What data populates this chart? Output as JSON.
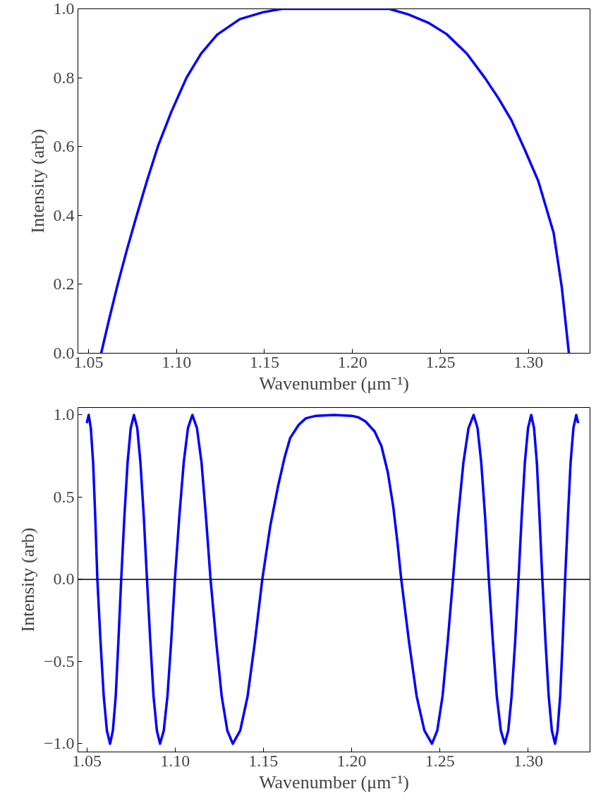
{
  "chart_data": [
    {
      "type": "line",
      "xlabel": "Wavenumber (μm⁻¹)",
      "ylabel": "Intensity (arb)",
      "grid": false,
      "marker": "none",
      "line_style": "solid",
      "xlim": [
        1.044,
        1.335
      ],
      "ylim": [
        0,
        1
      ],
      "xticks": [
        {
          "value": 1.05,
          "label": "1.05"
        },
        {
          "value": 1.1,
          "label": "1.10"
        },
        {
          "value": 1.15,
          "label": "1.15"
        },
        {
          "value": 1.2,
          "label": "1.20"
        },
        {
          "value": 1.25,
          "label": "1.25"
        },
        {
          "value": 1.3,
          "label": "1.30"
        }
      ],
      "yticks": [
        {
          "value": 0,
          "label": "0.0"
        },
        {
          "value": 0.2,
          "label": "0.2"
        },
        {
          "value": 0.4,
          "label": "0.4"
        },
        {
          "value": 0.6,
          "label": "0.6"
        },
        {
          "value": 0.8,
          "label": "0.8"
        },
        {
          "value": 1,
          "label": "1.0"
        }
      ],
      "series": [
        {
          "color": "#0000ff",
          "x": [
            1.0572,
            1.0618,
            1.0666,
            1.0718,
            1.0774,
            1.0832,
            1.0894,
            1.097,
            1.1057,
            1.114,
            1.1231,
            1.136,
            1.1491,
            1.16,
            1.18,
            1.2,
            1.2208,
            1.2317,
            1.243,
            1.2534,
            1.265,
            1.2752,
            1.283,
            1.2904,
            1.298,
            1.3056,
            1.3143,
            1.319,
            1.323
          ],
          "values": [
            0,
            0.1,
            0.2,
            0.3,
            0.4,
            0.5,
            0.6,
            0.7,
            0.8,
            0.87,
            0.925,
            0.97,
            0.99,
            1,
            1,
            1,
            1,
            0.984,
            0.96,
            0.927,
            0.87,
            0.8,
            0.74,
            0.676,
            0.59,
            0.5,
            0.35,
            0.19,
            0
          ]
        }
      ]
    },
    {
      "type": "line",
      "xlabel": "Wavenumber (μm⁻¹)",
      "ylabel": "Intensity (arb)",
      "grid": false,
      "marker": "none",
      "line_style": "solid",
      "xlim": [
        1.045,
        1.335
      ],
      "ylim": [
        -1.05,
        1.045
      ],
      "xticks": [
        {
          "value": 1.05,
          "label": "1.05"
        },
        {
          "value": 1.1,
          "label": "1.10"
        },
        {
          "value": 1.15,
          "label": "1.15"
        },
        {
          "value": 1.2,
          "label": "1.20"
        },
        {
          "value": 1.25,
          "label": "1.25"
        },
        {
          "value": 1.3,
          "label": "1.30"
        }
      ],
      "yticks": [
        {
          "value": -1,
          "label": "−1.0"
        },
        {
          "value": -0.5,
          "label": "−0.5"
        },
        {
          "value": 0,
          "label": "0.0"
        },
        {
          "value": 0.5,
          "label": "0.5"
        },
        {
          "value": 1,
          "label": "1.0"
        }
      ],
      "ref_lines": [
        {
          "axis": "y",
          "value": 0,
          "color": "#000000"
        }
      ],
      "series": [
        {
          "color": "#0000ff",
          "x": [
            1.05,
            1.0511,
            1.0523,
            1.0536,
            1.0548,
            1.056,
            1.0578,
            1.0596,
            1.0614,
            1.0632,
            1.0648,
            1.0664,
            1.0679,
            1.0695,
            1.0713,
            1.0731,
            1.0749,
            1.0767,
            1.0786,
            1.0804,
            1.0823,
            1.0841,
            1.086,
            1.0878,
            1.0897,
            1.0915,
            1.0936,
            1.0957,
            1.0978,
            1.0999,
            1.1024,
            1.1049,
            1.1073,
            1.1098,
            1.1124,
            1.115,
            1.1175,
            1.1201,
            1.1233,
            1.1264,
            1.1296,
            1.1327,
            1.1369,
            1.1411,
            1.1452,
            1.1494,
            1.154,
            1.1584,
            1.162,
            1.1652,
            1.17,
            1.1741,
            1.18,
            1.19,
            1.2,
            1.204,
            1.2079,
            1.213,
            1.2169,
            1.2205,
            1.2236,
            1.226,
            1.2281,
            1.2325,
            1.2368,
            1.2412,
            1.2455,
            1.2485,
            1.2515,
            1.2544,
            1.2574,
            1.2603,
            1.2633,
            1.2662,
            1.2691,
            1.2713,
            1.2734,
            1.2756,
            1.2777,
            1.28,
            1.2822,
            1.2845,
            1.2867,
            1.2887,
            1.2906,
            1.2926,
            1.2945,
            1.2963,
            1.2981,
            1.2999,
            1.3017,
            1.3033,
            1.3049,
            1.3064,
            1.308,
            1.3098,
            1.3116,
            1.3134,
            1.3152,
            1.3166,
            1.3181,
            1.3195,
            1.3209,
            1.3225,
            1.324,
            1.3256,
            1.3272,
            1.3283
          ],
          "values": [
            0.95,
            1,
            0.92,
            0.71,
            0.38,
            0,
            -0.38,
            -0.71,
            -0.92,
            -1,
            -0.92,
            -0.71,
            -0.38,
            0,
            0.38,
            0.71,
            0.92,
            1,
            0.92,
            0.71,
            0.38,
            0,
            -0.38,
            -0.71,
            -0.92,
            -1,
            -0.92,
            -0.71,
            -0.38,
            0,
            0.38,
            0.71,
            0.92,
            1,
            0.92,
            0.71,
            0.38,
            0,
            -0.38,
            -0.71,
            -0.92,
            -1,
            -0.92,
            -0.71,
            -0.38,
            0,
            0.33,
            0.57,
            0.74,
            0.86,
            0.94,
            0.98,
            0.995,
            1,
            0.995,
            0.985,
            0.96,
            0.9,
            0.81,
            0.65,
            0.44,
            0.22,
            0,
            -0.38,
            -0.71,
            -0.92,
            -1,
            -0.92,
            -0.71,
            -0.38,
            0,
            0.38,
            0.71,
            0.92,
            1,
            0.92,
            0.71,
            0.38,
            0,
            -0.38,
            -0.71,
            -0.92,
            -1,
            -0.92,
            -0.71,
            -0.38,
            0,
            0.38,
            0.71,
            0.92,
            1,
            0.92,
            0.71,
            0.38,
            0,
            -0.38,
            -0.71,
            -0.92,
            -1,
            -0.92,
            -0.71,
            -0.38,
            0,
            0.38,
            0.71,
            0.92,
            1,
            0.95
          ]
        }
      ]
    }
  ]
}
